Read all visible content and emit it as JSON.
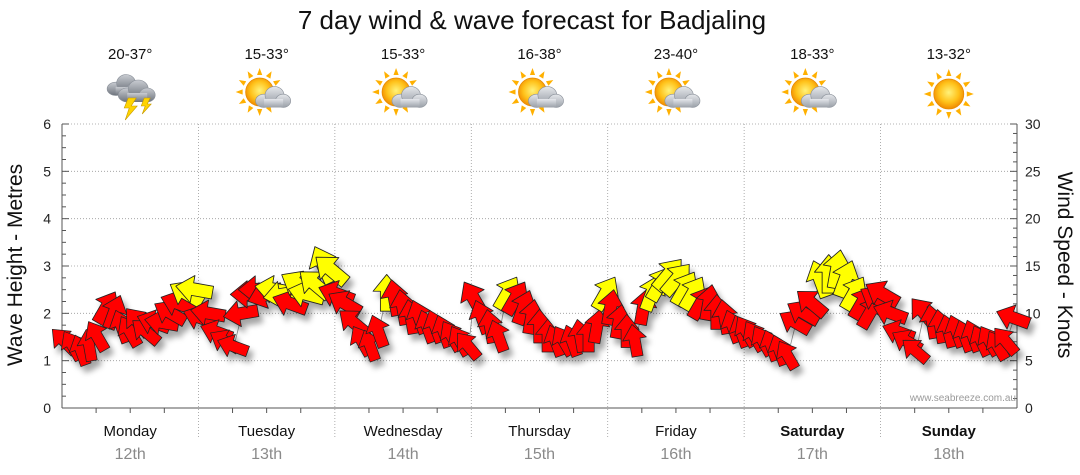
{
  "chart_data": {
    "type": "scatter",
    "title": "7 day wind & wave forecast for Badjaling",
    "ylabel": "Wave Height - Metres",
    "y2label": "Wind Speed - Knots",
    "ylim": [
      0,
      6
    ],
    "y2lim": [
      0,
      30
    ],
    "yticks": [
      "0",
      "1",
      "2",
      "3",
      "4",
      "5",
      "6"
    ],
    "y2ticks": [
      "0",
      "5",
      "10",
      "15",
      "20",
      "25",
      "30"
    ],
    "grid": true,
    "watermark": "www.seabreeze.com.au",
    "legend_colors": {
      "strong": "#ff0000",
      "moderate": "#ffff00",
      "outline": "#222222"
    },
    "days": [
      {
        "name": "Monday",
        "date": "12th",
        "temp": "20-37°",
        "icon": "storm-cloud-icon",
        "bold": false
      },
      {
        "name": "Tuesday",
        "date": "13th",
        "temp": "15-33°",
        "icon": "sun-cloud-icon",
        "bold": false
      },
      {
        "name": "Wednesday",
        "date": "14th",
        "temp": "15-33°",
        "icon": "sun-cloud-icon",
        "bold": false
      },
      {
        "name": "Thursday",
        "date": "15th",
        "temp": "16-38°",
        "icon": "sun-cloud-icon",
        "bold": false
      },
      {
        "name": "Friday",
        "date": "16th",
        "temp": "23-40°",
        "icon": "sun-cloud-icon",
        "bold": false
      },
      {
        "name": "Saturday",
        "date": "17th",
        "temp": "18-33°",
        "icon": "sun-cloud-icon",
        "bold": true
      },
      {
        "name": "Sunday",
        "date": "18th",
        "temp": "13-32°",
        "icon": "sun-icon",
        "bold": true
      }
    ],
    "wind_series": {
      "name": "Wind",
      "day_offset": [
        0.02,
        0.08,
        0.14,
        0.2,
        0.26,
        0.32,
        0.38,
        0.44,
        0.5,
        0.56,
        0.62,
        0.68,
        0.74,
        0.8,
        0.86,
        0.92,
        0.98
      ],
      "values_knots": [
        [
          7,
          6.5,
          6,
          6.5,
          7.5,
          10.5,
          10,
          8.5,
          8,
          9,
          8,
          9,
          9,
          10,
          11,
          12,
          12.5
        ],
        [
          9.5,
          10,
          8,
          7,
          6.5,
          10,
          12,
          12.5,
          12,
          12.5,
          12,
          11,
          13,
          12,
          13,
          15,
          14.5
        ],
        [
          12,
          11,
          9,
          7,
          6.5,
          8,
          12,
          11.5,
          10.5,
          9.5,
          9.5,
          8.5,
          8.5,
          8,
          7.5,
          7,
          6.5
        ],
        [
          11.5,
          9.5,
          8.5,
          7.5,
          12,
          11.5,
          10.5,
          9.5,
          8.5,
          7.5,
          7,
          7,
          7,
          7.5,
          7.5,
          8.5,
          12
        ],
        [
          10.5,
          9,
          8,
          7,
          10.5,
          12,
          13,
          14,
          13.5,
          12.5,
          12,
          11,
          11,
          10,
          9.5,
          8.5,
          8
        ],
        [
          8,
          7.5,
          7,
          6.5,
          6,
          5.5,
          9,
          10,
          11,
          13.5,
          14,
          14.5,
          13.5,
          12,
          11,
          10,
          11.5
        ],
        [
          12,
          10,
          8,
          7,
          6,
          10,
          9,
          8.5,
          8,
          8,
          7.5,
          7.5,
          7,
          7,
          6.5,
          7,
          9.5
        ]
      ],
      "directions_deg": [
        [
          225,
          240,
          250,
          260,
          240,
          300,
          290,
          250,
          240,
          230,
          220,
          200,
          190,
          210,
          200,
          210,
          190
        ],
        [
          200,
          190,
          200,
          210,
          200,
          170,
          180,
          180,
          160,
          190,
          170,
          200,
          210,
          195,
          220,
          245,
          220
        ],
        [
          200,
          210,
          220,
          240,
          250,
          250,
          270,
          260,
          260,
          260,
          250,
          250,
          250,
          250,
          240,
          240,
          230
        ],
        [
          240,
          250,
          260,
          250,
          300,
          300,
          290,
          280,
          270,
          270,
          250,
          240,
          250,
          260,
          270,
          280,
          300
        ],
        [
          280,
          280,
          270,
          260,
          280,
          290,
          300,
          310,
          310,
          300,
          300,
          300,
          280,
          270,
          260,
          250,
          250
        ],
        [
          240,
          240,
          240,
          250,
          250,
          240,
          210,
          210,
          220,
          250,
          270,
          280,
          290,
          300,
          300,
          300,
          210
        ],
        [
          210,
          200,
          200,
          210,
          220,
          230,
          260,
          260,
          255,
          250,
          250,
          250,
          245,
          240,
          240,
          230,
          200
        ]
      ]
    },
    "wave_series": {
      "name": "Wave",
      "values_m": [
        [
          1.4,
          1.3,
          1.2,
          1.3,
          1.5,
          2.1,
          2.0,
          1.7,
          1.6,
          1.8,
          1.6,
          1.8,
          1.8,
          2.0,
          2.2,
          2.4,
          2.5
        ],
        [
          1.9,
          2.0,
          1.6,
          1.4,
          1.3,
          2.0,
          2.4,
          2.5,
          2.4,
          2.5,
          2.4,
          2.2,
          2.6,
          2.4,
          2.6,
          3.0,
          2.9
        ],
        [
          2.4,
          2.2,
          1.8,
          1.4,
          1.3,
          1.6,
          2.4,
          2.3,
          2.1,
          1.9,
          1.9,
          1.7,
          1.7,
          1.6,
          1.5,
          1.4,
          1.3
        ],
        [
          2.3,
          1.9,
          1.7,
          1.5,
          2.4,
          2.3,
          2.1,
          1.9,
          1.7,
          1.5,
          1.4,
          1.4,
          1.4,
          1.5,
          1.5,
          1.7,
          2.4
        ],
        [
          2.1,
          1.8,
          1.6,
          1.4,
          2.1,
          2.4,
          2.6,
          2.8,
          2.7,
          2.5,
          2.4,
          2.2,
          2.2,
          2.0,
          1.9,
          1.7,
          1.6
        ],
        [
          1.6,
          1.5,
          1.4,
          1.3,
          1.2,
          1.1,
          1.8,
          2.0,
          2.2,
          2.7,
          2.8,
          2.9,
          2.7,
          2.4,
          2.2,
          2.0,
          2.3
        ],
        [
          2.4,
          2.0,
          1.6,
          1.4,
          1.2,
          2.0,
          1.8,
          1.7,
          1.6,
          1.6,
          1.5,
          1.5,
          1.4,
          1.4,
          1.3,
          1.4,
          1.9
        ]
      ]
    }
  }
}
